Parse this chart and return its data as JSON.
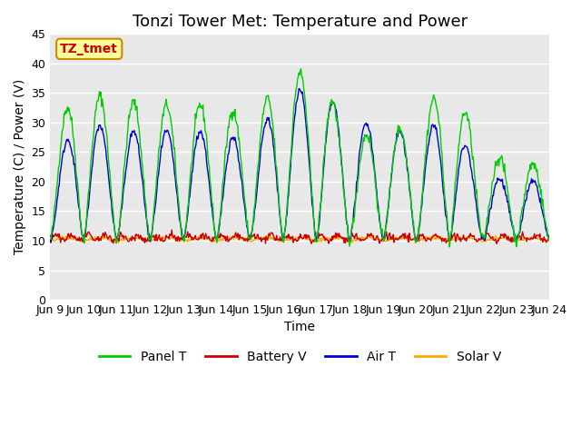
{
  "title": "Tonzi Tower Met: Temperature and Power",
  "ylabel": "Temperature (C) / Power (V)",
  "xlabel": "Time",
  "ylim": [
    0,
    45
  ],
  "xlim": [
    0,
    15
  ],
  "x_tick_labels": [
    "Jun 9",
    "Jun 10",
    "Jun 11",
    "Jun 12",
    "Jun 13",
    "Jun 14",
    "Jun 15",
    "Jun 16",
    "Jun 17",
    "Jun 18",
    "Jun 19",
    "Jun 20",
    "Jun 21",
    "Jun 22",
    "Jun 23",
    "Jun 24"
  ],
  "legend_labels": [
    "Panel T",
    "Battery V",
    "Air T",
    "Solar V"
  ],
  "legend_colors": [
    "#00cc00",
    "#cc0000",
    "#0000cc",
    "#ffaa00"
  ],
  "panel_color": "#00cc00",
  "battery_color": "#cc0000",
  "air_color": "#0000cc",
  "solar_color": "#ffaa00",
  "bg_color": "#e8e8e8",
  "annotation_text": "TZ_tmet",
  "annotation_bg": "#ffff99",
  "annotation_fg": "#cc0000",
  "title_fontsize": 13,
  "label_fontsize": 10,
  "tick_fontsize": 9,
  "panel_amp": [
    19,
    26,
    23,
    24,
    22,
    24,
    20,
    28,
    29,
    18,
    18,
    20,
    28,
    15,
    13,
    13
  ],
  "air_amp": [
    13,
    21,
    18,
    19,
    18,
    19,
    16,
    25,
    26,
    21,
    19,
    18,
    21,
    11,
    10,
    10
  ]
}
